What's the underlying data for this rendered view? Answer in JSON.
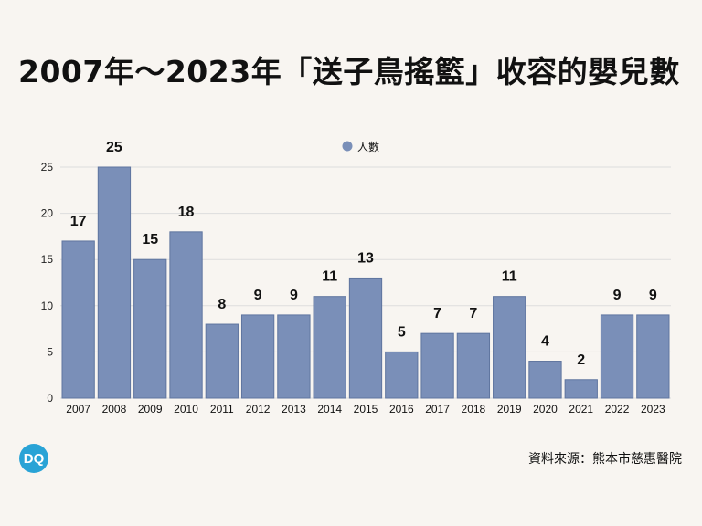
{
  "title": "2007年～2023年「送子鳥搖籃」收容的嬰兒數",
  "source": "資料來源：熊本市慈惠醫院",
  "logo_text": "DQ",
  "colors": {
    "bar": "#7a8fb8",
    "bar_stroke": "#5f759f",
    "grid": "#dddddd",
    "background": "#f8f5f1",
    "logo": "#29a3d6"
  },
  "chart_data": {
    "type": "bar",
    "categories": [
      "2007",
      "2008",
      "2009",
      "2010",
      "2011",
      "2012",
      "2013",
      "2014",
      "2015",
      "2016",
      "2017",
      "2018",
      "2019",
      "2020",
      "2021",
      "2022",
      "2023"
    ],
    "series": [
      {
        "name": "人數",
        "values": [
          17,
          25,
          15,
          18,
          8,
          9,
          9,
          11,
          13,
          5,
          7,
          7,
          11,
          4,
          2,
          9,
          9
        ]
      }
    ],
    "yticks": [
      0,
      5,
      10,
      15,
      20,
      25
    ],
    "ylim": [
      0,
      25
    ],
    "grid": true,
    "legend_position": "top-center",
    "data_labels": true
  }
}
